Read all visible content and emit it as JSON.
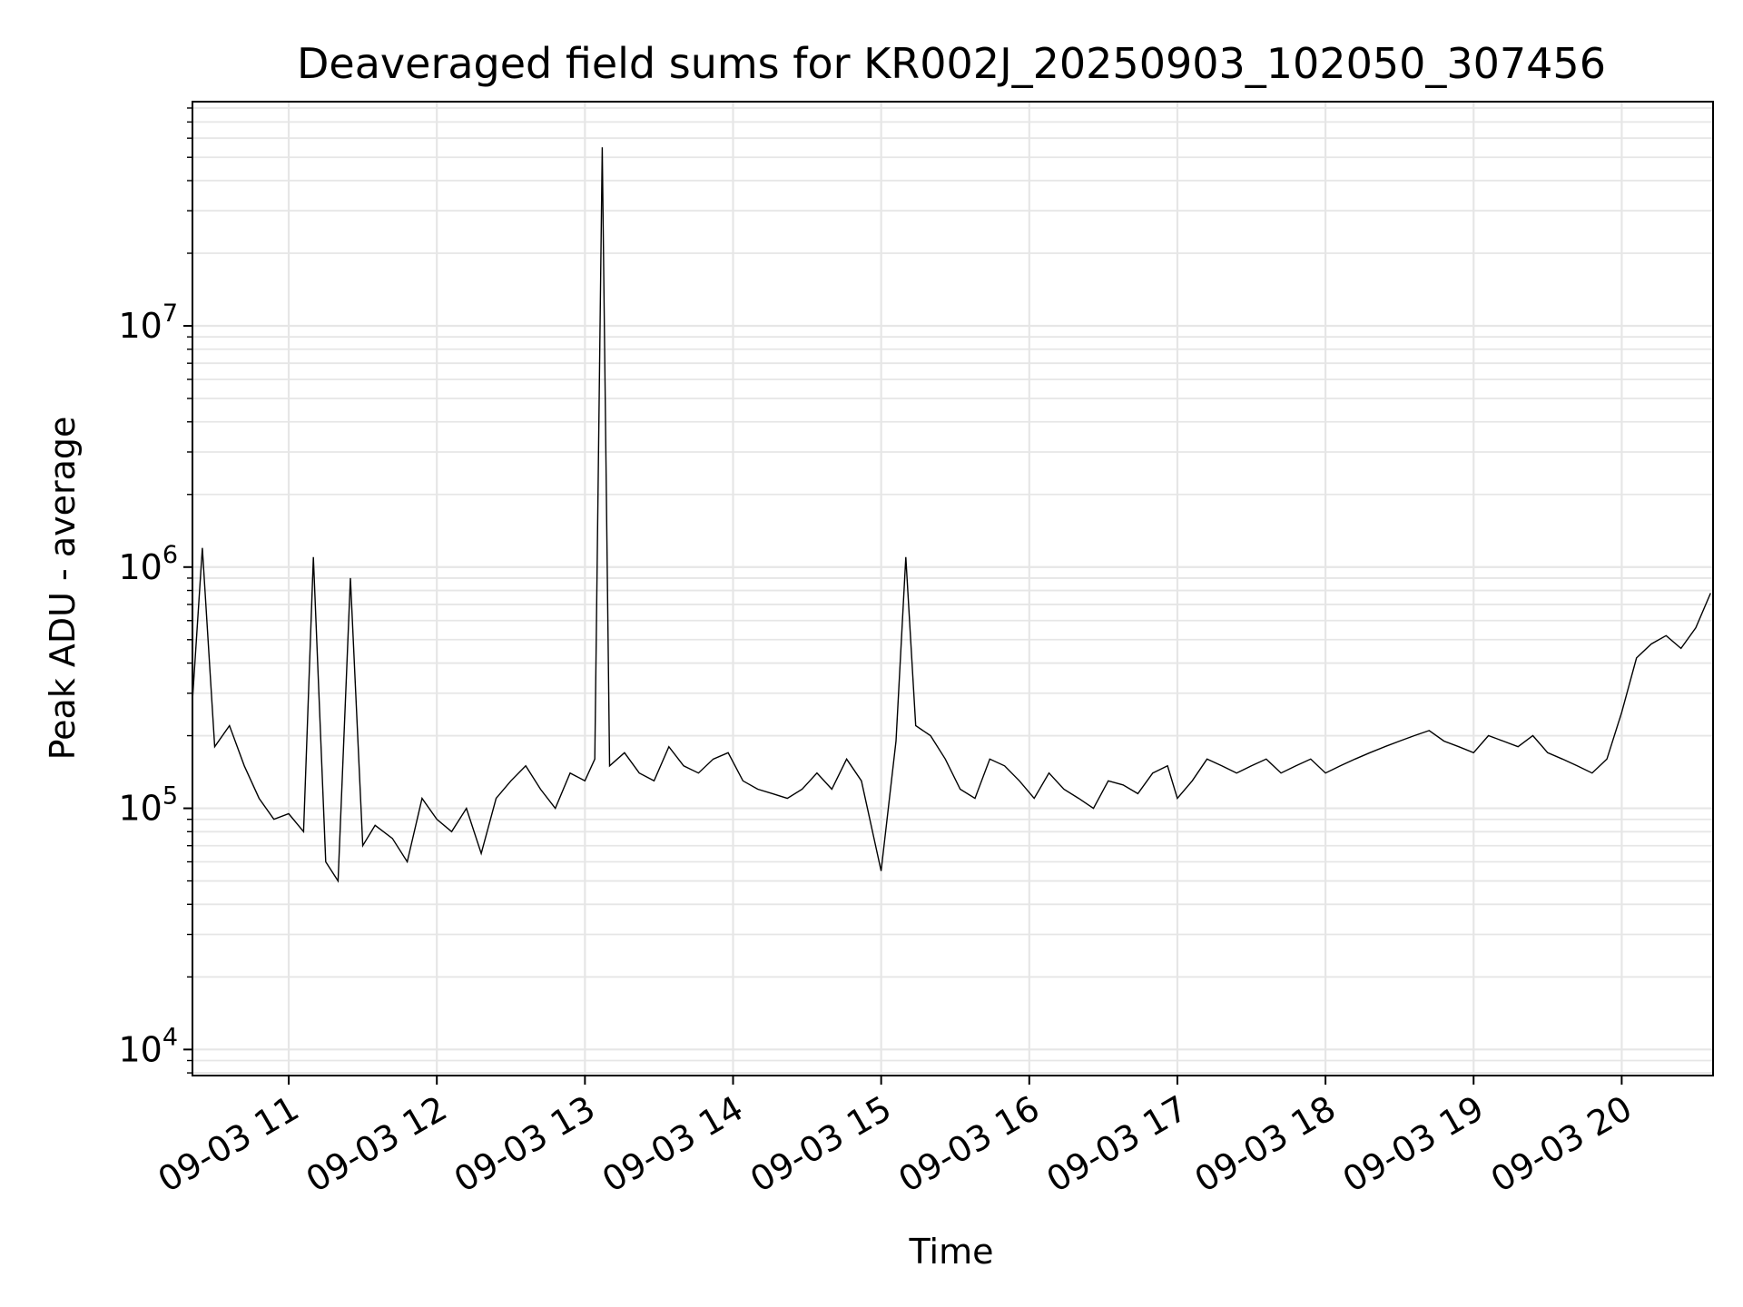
{
  "chart_data": {
    "type": "line",
    "title": "Deaveraged field sums for KR002J_20250903_102050_307456",
    "xlabel": "Time",
    "ylabel": "Peak ADU - average",
    "x_scale": "time",
    "y_scale": "log",
    "xlim": [
      "2025-09-03 10:21",
      "2025-09-03 20:37"
    ],
    "ylim": [
      7800,
      85000000
    ],
    "grid": true,
    "x_ticks": [
      {
        "value": "2025-09-03 11:00",
        "label": "09-03 11"
      },
      {
        "value": "2025-09-03 12:00",
        "label": "09-03 12"
      },
      {
        "value": "2025-09-03 13:00",
        "label": "09-03 13"
      },
      {
        "value": "2025-09-03 14:00",
        "label": "09-03 14"
      },
      {
        "value": "2025-09-03 15:00",
        "label": "09-03 15"
      },
      {
        "value": "2025-09-03 16:00",
        "label": "09-03 16"
      },
      {
        "value": "2025-09-03 17:00",
        "label": "09-03 17"
      },
      {
        "value": "2025-09-03 18:00",
        "label": "09-03 18"
      },
      {
        "value": "2025-09-03 19:00",
        "label": "09-03 19"
      },
      {
        "value": "2025-09-03 20:00",
        "label": "09-03 20"
      }
    ],
    "y_ticks": [
      {
        "value": 10000,
        "base": "10",
        "exp": "4"
      },
      {
        "value": 100000,
        "base": "10",
        "exp": "5"
      },
      {
        "value": 1000000,
        "base": "10",
        "exp": "6"
      },
      {
        "value": 10000000,
        "base": "10",
        "exp": "7"
      }
    ],
    "series": [
      {
        "color": "#000000",
        "x": [
          "2025-09-03 10:21",
          "2025-09-03 10:25",
          "2025-09-03 10:30",
          "2025-09-03 10:36",
          "2025-09-03 10:42",
          "2025-09-03 10:48",
          "2025-09-03 10:54",
          "2025-09-03 11:00",
          "2025-09-03 11:06",
          "2025-09-03 11:10",
          "2025-09-03 11:15",
          "2025-09-03 11:20",
          "2025-09-03 11:25",
          "2025-09-03 11:30",
          "2025-09-03 11:35",
          "2025-09-03 11:42",
          "2025-09-03 11:48",
          "2025-09-03 11:54",
          "2025-09-03 12:00",
          "2025-09-03 12:06",
          "2025-09-03 12:12",
          "2025-09-03 12:18",
          "2025-09-03 12:24",
          "2025-09-03 12:30",
          "2025-09-03 12:36",
          "2025-09-03 12:42",
          "2025-09-03 12:48",
          "2025-09-03 12:54",
          "2025-09-03 13:00",
          "2025-09-03 13:04",
          "2025-09-03 13:07",
          "2025-09-03 13:10",
          "2025-09-03 13:16",
          "2025-09-03 13:22",
          "2025-09-03 13:28",
          "2025-09-03 13:34",
          "2025-09-03 13:40",
          "2025-09-03 13:46",
          "2025-09-03 13:52",
          "2025-09-03 13:58",
          "2025-09-03 14:04",
          "2025-09-03 14:10",
          "2025-09-03 14:16",
          "2025-09-03 14:22",
          "2025-09-03 14:28",
          "2025-09-03 14:34",
          "2025-09-03 14:40",
          "2025-09-03 14:46",
          "2025-09-03 14:52",
          "2025-09-03 15:00",
          "2025-09-03 15:06",
          "2025-09-03 15:10",
          "2025-09-03 15:14",
          "2025-09-03 15:20",
          "2025-09-03 15:26",
          "2025-09-03 15:32",
          "2025-09-03 15:38",
          "2025-09-03 15:44",
          "2025-09-03 15:50",
          "2025-09-03 15:56",
          "2025-09-03 16:02",
          "2025-09-03 16:08",
          "2025-09-03 16:14",
          "2025-09-03 16:20",
          "2025-09-03 16:26",
          "2025-09-03 16:32",
          "2025-09-03 16:38",
          "2025-09-03 16:44",
          "2025-09-03 16:50",
          "2025-09-03 16:56",
          "2025-09-03 17:00",
          "2025-09-03 17:06",
          "2025-09-03 17:12",
          "2025-09-03 17:18",
          "2025-09-03 17:24",
          "2025-09-03 17:30",
          "2025-09-03 17:36",
          "2025-09-03 17:42",
          "2025-09-03 17:48",
          "2025-09-03 17:54",
          "2025-09-03 18:00",
          "2025-09-03 18:06",
          "2025-09-03 18:12",
          "2025-09-03 18:18",
          "2025-09-03 18:24",
          "2025-09-03 18:30",
          "2025-09-03 18:36",
          "2025-09-03 18:42",
          "2025-09-03 18:48",
          "2025-09-03 18:54",
          "2025-09-03 19:00",
          "2025-09-03 19:06",
          "2025-09-03 19:12",
          "2025-09-03 19:18",
          "2025-09-03 19:24",
          "2025-09-03 19:30",
          "2025-09-03 19:36",
          "2025-09-03 19:42",
          "2025-09-03 19:48",
          "2025-09-03 19:54",
          "2025-09-03 20:00",
          "2025-09-03 20:06",
          "2025-09-03 20:12",
          "2025-09-03 20:18",
          "2025-09-03 20:24",
          "2025-09-03 20:30",
          "2025-09-03 20:36"
        ],
        "y": [
          280000,
          1200000,
          180000,
          220000,
          150000,
          110000,
          90000,
          95000,
          80000,
          1100000,
          60000,
          50000,
          900000,
          70000,
          85000,
          75000,
          60000,
          110000,
          90000,
          80000,
          100000,
          65000,
          110000,
          130000,
          150000,
          120000,
          100000,
          140000,
          130000,
          160000,
          55000000,
          150000,
          170000,
          140000,
          130000,
          180000,
          150000,
          140000,
          160000,
          170000,
          130000,
          120000,
          115000,
          110000,
          120000,
          140000,
          120000,
          160000,
          130000,
          55000,
          190000,
          1100000,
          220000,
          200000,
          160000,
          120000,
          110000,
          160000,
          150000,
          130000,
          110000,
          140000,
          120000,
          110000,
          100000,
          130000,
          125000,
          115000,
          140000,
          150000,
          110000,
          130000,
          160000,
          150000,
          140000,
          150000,
          160000,
          140000,
          150000,
          160000,
          140000,
          150000,
          160000,
          170000,
          180000,
          190000,
          200000,
          210000,
          190000,
          180000,
          170000,
          200000,
          190000,
          180000,
          200000,
          170000,
          160000,
          150000,
          140000,
          160000,
          250000,
          420000,
          480000,
          520000,
          460000,
          560000,
          780000
        ]
      }
    ]
  }
}
